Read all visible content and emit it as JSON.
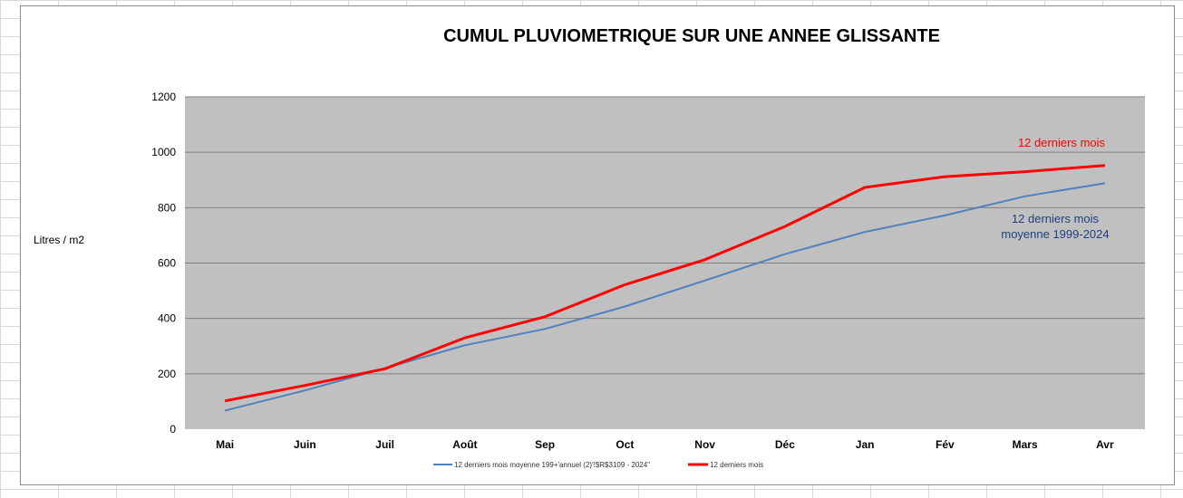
{
  "chart_data": {
    "type": "line",
    "title": "CUMUL PLUVIOMETRIQUE SUR UNE ANNEE GLISSANTE",
    "xlabel": "",
    "ylabel": "Litres / m2",
    "ylim": [
      0,
      1200
    ],
    "yticks": [
      0,
      200,
      400,
      600,
      800,
      1000,
      1200
    ],
    "grid": true,
    "legend_position": "bottom",
    "categories": [
      "Mai",
      "Juin",
      "Juil",
      "Août",
      "Sep",
      "Oct",
      "Nov",
      "Déc",
      "Jan",
      "Fév",
      "Mars",
      "Avr"
    ],
    "series": [
      {
        "name": "12 derniers mois moyenne 199+'annuel  (2)'!$R$3109 - 2024\"",
        "color": "#4f81bd",
        "values": [
          67,
          140,
          220,
          303,
          362,
          443,
          537,
          632,
          712,
          772,
          841,
          888
        ]
      },
      {
        "name": "12 derniers mois",
        "color": "#ff0000",
        "values": [
          102,
          158,
          218,
          330,
          406,
          522,
          612,
          732,
          873,
          912,
          930,
          952
        ]
      }
    ],
    "annotations": [
      {
        "text": "12 derniers mois",
        "color": "#ff0000"
      },
      {
        "text": "12 derniers mois",
        "color": "#1f3f7f"
      },
      {
        "text": "moyenne 1999-2024",
        "color": "#1f3f7f"
      }
    ],
    "colors": {
      "plot_background": "#c0c0c0",
      "gridline": "#7f7f7f"
    }
  }
}
